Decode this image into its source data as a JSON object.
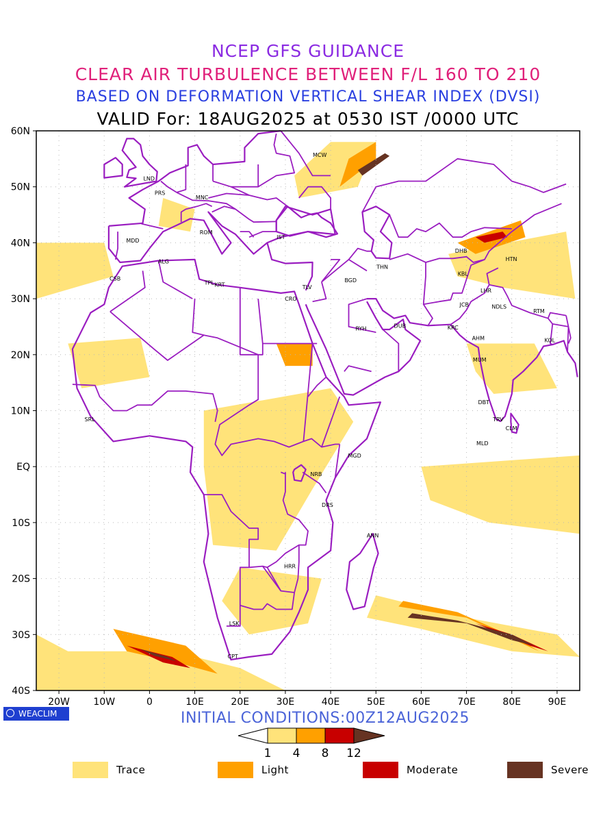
{
  "titles": {
    "line1": "NCEP GFS GUIDANCE",
    "line2": "CLEAR AIR TURBULENCE BETWEEN F/L 160 TO 210",
    "line3": "BASED ON DEFORMATION VERTICAL SHEAR INDEX (DVSI)",
    "line4": "VALID For: 18AUG2025 at 0530 IST /0000 UTC"
  },
  "colors": {
    "title1": "#8b2be2",
    "title2": "#e0207a",
    "title3": "#2a3fe0",
    "init": "#4a63d8",
    "boundary": "#9a1dc0",
    "trace": "#ffe37a",
    "light": "#ffa000",
    "moderate": "#c80000",
    "severe": "#663322"
  },
  "map": {
    "lat_ticks": [
      "60N",
      "50N",
      "40N",
      "30N",
      "20N",
      "10N",
      "EQ",
      "10S",
      "20S",
      "30S",
      "40S"
    ],
    "lon_ticks": [
      "20W",
      "10W",
      "0",
      "10E",
      "20E",
      "30E",
      "40E",
      "50E",
      "60E",
      "70E",
      "80E",
      "90E"
    ],
    "extent": {
      "lon_min": -25,
      "lon_max": 95,
      "lat_min": -40,
      "lat_max": 60
    },
    "stations": [
      {
        "name": "MCW",
        "lon": 37.6,
        "lat": 55.7
      },
      {
        "name": "LND",
        "lon": -0.1,
        "lat": 51.5
      },
      {
        "name": "PRS",
        "lon": 2.3,
        "lat": 48.9
      },
      {
        "name": "MNC",
        "lon": 11.6,
        "lat": 48.1
      },
      {
        "name": "ROM",
        "lon": 12.5,
        "lat": 41.9
      },
      {
        "name": "MDD",
        "lon": -3.7,
        "lat": 40.4
      },
      {
        "name": "IST",
        "lon": 29.0,
        "lat": 41.0
      },
      {
        "name": "ALG",
        "lon": 3.1,
        "lat": 36.7
      },
      {
        "name": "CSB",
        "lon": -7.6,
        "lat": 33.6
      },
      {
        "name": "TPL",
        "lon": 13.2,
        "lat": 32.9
      },
      {
        "name": "KRT",
        "lon": 15.5,
        "lat": 32.5
      },
      {
        "name": "TLV",
        "lon": 34.8,
        "lat": 32.1
      },
      {
        "name": "CRO",
        "lon": 31.2,
        "lat": 30.0
      },
      {
        "name": "BGD",
        "lon": 44.4,
        "lat": 33.3
      },
      {
        "name": "THN",
        "lon": 51.4,
        "lat": 35.7
      },
      {
        "name": "RYH",
        "lon": 46.7,
        "lat": 24.7
      },
      {
        "name": "DUB",
        "lon": 55.3,
        "lat": 25.2
      },
      {
        "name": "DHB",
        "lon": 68.8,
        "lat": 38.6
      },
      {
        "name": "KBL",
        "lon": 69.2,
        "lat": 34.5
      },
      {
        "name": "HTN",
        "lon": 79.9,
        "lat": 37.1
      },
      {
        "name": "JCB",
        "lon": 69.5,
        "lat": 29.0
      },
      {
        "name": "LHR",
        "lon": 74.3,
        "lat": 31.5
      },
      {
        "name": "NDLS",
        "lon": 77.2,
        "lat": 28.6
      },
      {
        "name": "RTM",
        "lon": 86.0,
        "lat": 27.8
      },
      {
        "name": "KRC",
        "lon": 67.0,
        "lat": 24.9
      },
      {
        "name": "AHM",
        "lon": 72.6,
        "lat": 23.0
      },
      {
        "name": "KOL",
        "lon": 88.4,
        "lat": 22.6
      },
      {
        "name": "MUM",
        "lon": 72.9,
        "lat": 19.1
      },
      {
        "name": "DBT",
        "lon": 73.8,
        "lat": 11.5
      },
      {
        "name": "TRV",
        "lon": 77.0,
        "lat": 8.5
      },
      {
        "name": "CLM",
        "lon": 79.9,
        "lat": 6.9
      },
      {
        "name": "MLD",
        "lon": 73.5,
        "lat": 4.2
      },
      {
        "name": "SRL",
        "lon": -13.2,
        "lat": 8.5
      },
      {
        "name": "MGD",
        "lon": 45.3,
        "lat": 2.0
      },
      {
        "name": "NRB",
        "lon": 36.8,
        "lat": -1.3
      },
      {
        "name": "DRS",
        "lon": 39.3,
        "lat": -6.8
      },
      {
        "name": "ANN",
        "lon": 49.3,
        "lat": -12.3
      },
      {
        "name": "HRR",
        "lon": 31.0,
        "lat": -17.8
      },
      {
        "name": "LSK",
        "lon": 18.7,
        "lat": -28.0
      },
      {
        "name": "CPT",
        "lon": 18.4,
        "lat": -33.9
      }
    ]
  },
  "footer": {
    "logo_text": "WEACLIM",
    "initial_conditions": "INITIAL CONDITIONS:00Z12AUG2025"
  },
  "colorbar": {
    "thresholds": [
      "1",
      "4",
      "8",
      "12"
    ]
  },
  "legend": [
    {
      "label": "Trace",
      "color": "#ffe37a"
    },
    {
      "label": "Light",
      "color": "#ffa000"
    },
    {
      "label": "Moderate",
      "color": "#c80000"
    },
    {
      "label": "Severe",
      "color": "#663322"
    }
  ]
}
